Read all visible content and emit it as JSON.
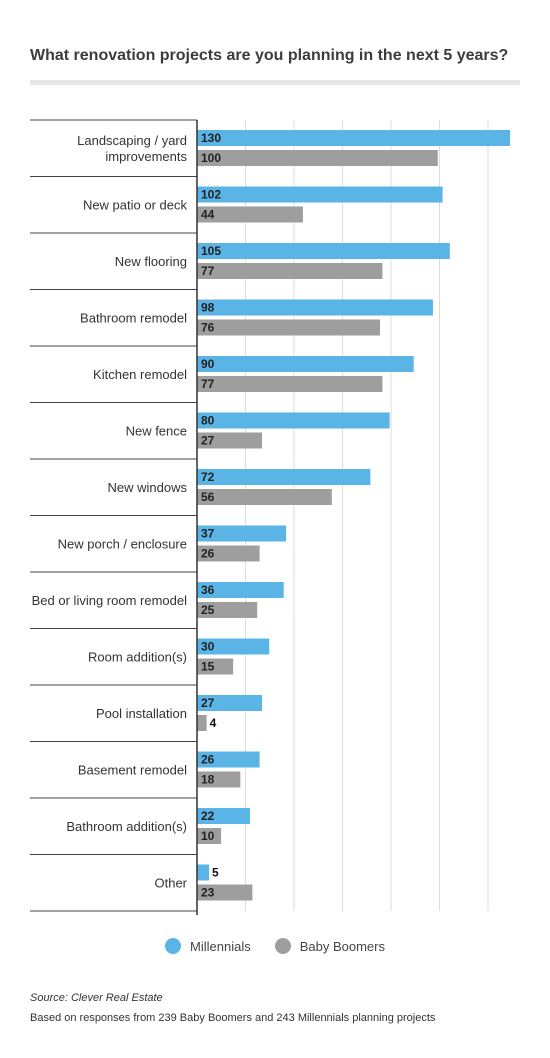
{
  "chart_data": {
    "type": "bar",
    "orientation": "horizontal",
    "title": "What renovation projects are you planning in the next 5 years?",
    "categories": [
      [
        "Landscaping / yard",
        "improvements"
      ],
      [
        "New patio or deck"
      ],
      [
        "New flooring"
      ],
      [
        "Bathroom remodel"
      ],
      [
        "Kitchen remodel"
      ],
      [
        "New fence"
      ],
      [
        "New windows"
      ],
      [
        "New porch / enclosure"
      ],
      [
        "Bed or living room remodel"
      ],
      [
        "Room addition(s)"
      ],
      [
        "Pool installation"
      ],
      [
        "Basement remodel"
      ],
      [
        "Bathroom addition(s)"
      ],
      [
        "Other"
      ]
    ],
    "series": [
      {
        "name": "Millennials",
        "color": "#5ab4e5",
        "values": [
          130,
          102,
          105,
          98,
          90,
          80,
          72,
          37,
          36,
          30,
          27,
          26,
          22,
          5
        ]
      },
      {
        "name": "Baby Boomers",
        "color": "#9e9e9e",
        "values": [
          100,
          44,
          77,
          76,
          77,
          27,
          56,
          26,
          25,
          15,
          4,
          18,
          10,
          23
        ]
      }
    ],
    "xlim": [
      0,
      130
    ],
    "grid": true,
    "legend_position": "bottom"
  },
  "source": "Source: Clever Real Estate",
  "note": "Based on responses from 239 Baby Boomers and 243 Millennials planning projects"
}
